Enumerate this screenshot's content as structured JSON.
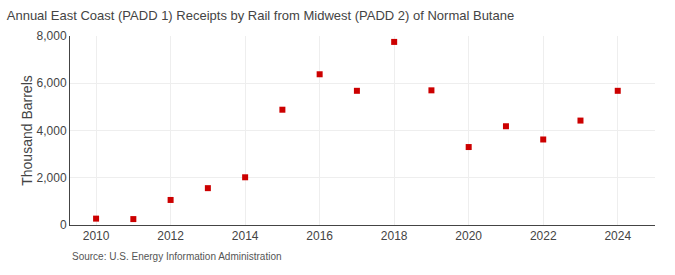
{
  "chart_data": {
    "type": "scatter",
    "title": "Annual East Coast (PADD 1) Receipts by Rail from Midwest (PADD 2) of Normal Butane",
    "ylabel": "Thousand Barrels",
    "annotations": [
      "Source: U.S. Energy Information Administration"
    ],
    "x": [
      2010,
      2011,
      2012,
      2013,
      2014,
      2015,
      2016,
      2017,
      2018,
      2019,
      2020,
      2021,
      2022,
      2023,
      2024
    ],
    "values": [
      270,
      250,
      1060,
      1560,
      2020,
      4880,
      6380,
      5680,
      7750,
      5700,
      3300,
      4180,
      3620,
      4420,
      5680
    ],
    "color": "#cc0000",
    "marker": "square",
    "xlim": [
      2009.3,
      2025.0
    ],
    "xticks": [
      2010,
      2012,
      2014,
      2016,
      2018,
      2020,
      2022,
      2024
    ],
    "ylim": [
      0,
      8000
    ],
    "yticks": [
      0,
      {
        "value": 2000,
        "label": "2,000"
      },
      {
        "value": 4000,
        "label": "4,000"
      },
      {
        "value": 6000,
        "label": "6,000"
      },
      {
        "value": 8000,
        "label": "8,000"
      }
    ],
    "grid": true
  }
}
